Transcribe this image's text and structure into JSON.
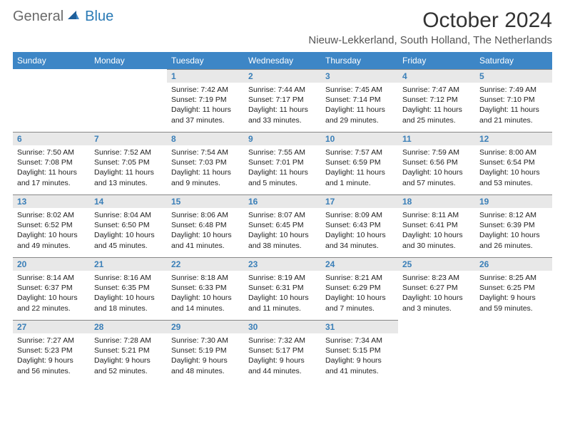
{
  "logo": {
    "text_gray": "General",
    "text_blue": "Blue"
  },
  "header": {
    "month_title": "October 2024",
    "location": "Nieuw-Lekkerland, South Holland, The Netherlands"
  },
  "colors": {
    "header_bg": "#3d86c6",
    "header_text": "#ffffff",
    "daynum_bg": "#e8e8e8",
    "daynum_text": "#3a7fb8",
    "logo_gray": "#6a6a6a",
    "logo_blue": "#2a7ab5"
  },
  "weekdays": [
    "Sunday",
    "Monday",
    "Tuesday",
    "Wednesday",
    "Thursday",
    "Friday",
    "Saturday"
  ],
  "weeks": [
    [
      null,
      null,
      {
        "n": "1",
        "sunrise": "Sunrise: 7:42 AM",
        "sunset": "Sunset: 7:19 PM",
        "daylight1": "Daylight: 11 hours",
        "daylight2": "and 37 minutes."
      },
      {
        "n": "2",
        "sunrise": "Sunrise: 7:44 AM",
        "sunset": "Sunset: 7:17 PM",
        "daylight1": "Daylight: 11 hours",
        "daylight2": "and 33 minutes."
      },
      {
        "n": "3",
        "sunrise": "Sunrise: 7:45 AM",
        "sunset": "Sunset: 7:14 PM",
        "daylight1": "Daylight: 11 hours",
        "daylight2": "and 29 minutes."
      },
      {
        "n": "4",
        "sunrise": "Sunrise: 7:47 AM",
        "sunset": "Sunset: 7:12 PM",
        "daylight1": "Daylight: 11 hours",
        "daylight2": "and 25 minutes."
      },
      {
        "n": "5",
        "sunrise": "Sunrise: 7:49 AM",
        "sunset": "Sunset: 7:10 PM",
        "daylight1": "Daylight: 11 hours",
        "daylight2": "and 21 minutes."
      }
    ],
    [
      {
        "n": "6",
        "sunrise": "Sunrise: 7:50 AM",
        "sunset": "Sunset: 7:08 PM",
        "daylight1": "Daylight: 11 hours",
        "daylight2": "and 17 minutes."
      },
      {
        "n": "7",
        "sunrise": "Sunrise: 7:52 AM",
        "sunset": "Sunset: 7:05 PM",
        "daylight1": "Daylight: 11 hours",
        "daylight2": "and 13 minutes."
      },
      {
        "n": "8",
        "sunrise": "Sunrise: 7:54 AM",
        "sunset": "Sunset: 7:03 PM",
        "daylight1": "Daylight: 11 hours",
        "daylight2": "and 9 minutes."
      },
      {
        "n": "9",
        "sunrise": "Sunrise: 7:55 AM",
        "sunset": "Sunset: 7:01 PM",
        "daylight1": "Daylight: 11 hours",
        "daylight2": "and 5 minutes."
      },
      {
        "n": "10",
        "sunrise": "Sunrise: 7:57 AM",
        "sunset": "Sunset: 6:59 PM",
        "daylight1": "Daylight: 11 hours",
        "daylight2": "and 1 minute."
      },
      {
        "n": "11",
        "sunrise": "Sunrise: 7:59 AM",
        "sunset": "Sunset: 6:56 PM",
        "daylight1": "Daylight: 10 hours",
        "daylight2": "and 57 minutes."
      },
      {
        "n": "12",
        "sunrise": "Sunrise: 8:00 AM",
        "sunset": "Sunset: 6:54 PM",
        "daylight1": "Daylight: 10 hours",
        "daylight2": "and 53 minutes."
      }
    ],
    [
      {
        "n": "13",
        "sunrise": "Sunrise: 8:02 AM",
        "sunset": "Sunset: 6:52 PM",
        "daylight1": "Daylight: 10 hours",
        "daylight2": "and 49 minutes."
      },
      {
        "n": "14",
        "sunrise": "Sunrise: 8:04 AM",
        "sunset": "Sunset: 6:50 PM",
        "daylight1": "Daylight: 10 hours",
        "daylight2": "and 45 minutes."
      },
      {
        "n": "15",
        "sunrise": "Sunrise: 8:06 AM",
        "sunset": "Sunset: 6:48 PM",
        "daylight1": "Daylight: 10 hours",
        "daylight2": "and 41 minutes."
      },
      {
        "n": "16",
        "sunrise": "Sunrise: 8:07 AM",
        "sunset": "Sunset: 6:45 PM",
        "daylight1": "Daylight: 10 hours",
        "daylight2": "and 38 minutes."
      },
      {
        "n": "17",
        "sunrise": "Sunrise: 8:09 AM",
        "sunset": "Sunset: 6:43 PM",
        "daylight1": "Daylight: 10 hours",
        "daylight2": "and 34 minutes."
      },
      {
        "n": "18",
        "sunrise": "Sunrise: 8:11 AM",
        "sunset": "Sunset: 6:41 PM",
        "daylight1": "Daylight: 10 hours",
        "daylight2": "and 30 minutes."
      },
      {
        "n": "19",
        "sunrise": "Sunrise: 8:12 AM",
        "sunset": "Sunset: 6:39 PM",
        "daylight1": "Daylight: 10 hours",
        "daylight2": "and 26 minutes."
      }
    ],
    [
      {
        "n": "20",
        "sunrise": "Sunrise: 8:14 AM",
        "sunset": "Sunset: 6:37 PM",
        "daylight1": "Daylight: 10 hours",
        "daylight2": "and 22 minutes."
      },
      {
        "n": "21",
        "sunrise": "Sunrise: 8:16 AM",
        "sunset": "Sunset: 6:35 PM",
        "daylight1": "Daylight: 10 hours",
        "daylight2": "and 18 minutes."
      },
      {
        "n": "22",
        "sunrise": "Sunrise: 8:18 AM",
        "sunset": "Sunset: 6:33 PM",
        "daylight1": "Daylight: 10 hours",
        "daylight2": "and 14 minutes."
      },
      {
        "n": "23",
        "sunrise": "Sunrise: 8:19 AM",
        "sunset": "Sunset: 6:31 PM",
        "daylight1": "Daylight: 10 hours",
        "daylight2": "and 11 minutes."
      },
      {
        "n": "24",
        "sunrise": "Sunrise: 8:21 AM",
        "sunset": "Sunset: 6:29 PM",
        "daylight1": "Daylight: 10 hours",
        "daylight2": "and 7 minutes."
      },
      {
        "n": "25",
        "sunrise": "Sunrise: 8:23 AM",
        "sunset": "Sunset: 6:27 PM",
        "daylight1": "Daylight: 10 hours",
        "daylight2": "and 3 minutes."
      },
      {
        "n": "26",
        "sunrise": "Sunrise: 8:25 AM",
        "sunset": "Sunset: 6:25 PM",
        "daylight1": "Daylight: 9 hours",
        "daylight2": "and 59 minutes."
      }
    ],
    [
      {
        "n": "27",
        "sunrise": "Sunrise: 7:27 AM",
        "sunset": "Sunset: 5:23 PM",
        "daylight1": "Daylight: 9 hours",
        "daylight2": "and 56 minutes."
      },
      {
        "n": "28",
        "sunrise": "Sunrise: 7:28 AM",
        "sunset": "Sunset: 5:21 PM",
        "daylight1": "Daylight: 9 hours",
        "daylight2": "and 52 minutes."
      },
      {
        "n": "29",
        "sunrise": "Sunrise: 7:30 AM",
        "sunset": "Sunset: 5:19 PM",
        "daylight1": "Daylight: 9 hours",
        "daylight2": "and 48 minutes."
      },
      {
        "n": "30",
        "sunrise": "Sunrise: 7:32 AM",
        "sunset": "Sunset: 5:17 PM",
        "daylight1": "Daylight: 9 hours",
        "daylight2": "and 44 minutes."
      },
      {
        "n": "31",
        "sunrise": "Sunrise: 7:34 AM",
        "sunset": "Sunset: 5:15 PM",
        "daylight1": "Daylight: 9 hours",
        "daylight2": "and 41 minutes."
      },
      null,
      null
    ]
  ]
}
